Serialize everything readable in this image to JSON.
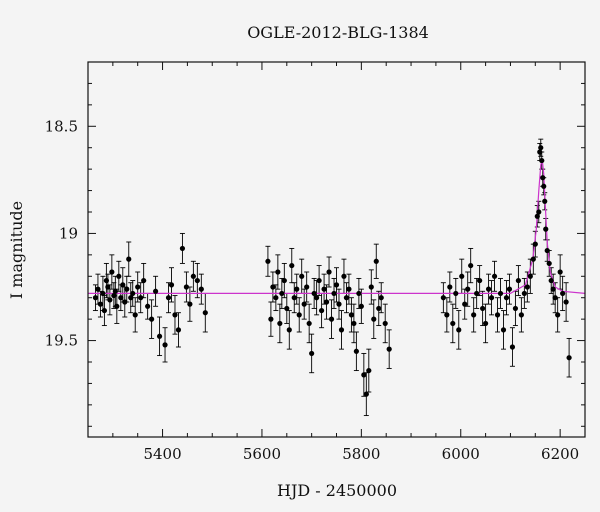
{
  "chart_data": {
    "type": "scatter",
    "title": "OGLE-2012-BLG-1384",
    "xlabel": "HJD - 2450000",
    "ylabel": "I magnitude",
    "xlim": [
      5250,
      6250
    ],
    "ylim": [
      19.95,
      18.2
    ],
    "y_inverted": true,
    "grid": false,
    "legend": "none",
    "xticks": [
      5400,
      5600,
      5800,
      6000,
      6200
    ],
    "yticks": [
      18.5,
      19,
      19.5
    ],
    "colors": {
      "points": "#000000",
      "model": "#cc33cc"
    },
    "series": [
      {
        "kind": "points_with_errorbars",
        "x": [
          5265,
          5270,
          5275,
          5280,
          5283,
          5287,
          5290,
          5294,
          5298,
          5302,
          5305,
          5308,
          5312,
          5316,
          5320,
          5324,
          5328,
          5332,
          5336,
          5340,
          5345,
          5350,
          5356,
          5362,
          5370,
          5378,
          5386,
          5394,
          5405,
          5412,
          5418,
          5425,
          5432,
          5440,
          5448,
          5455,
          5462,
          5470,
          5478,
          5486,
          5612,
          5618,
          5622,
          5628,
          5632,
          5636,
          5640,
          5645,
          5650,
          5655,
          5660,
          5665,
          5670,
          5675,
          5680,
          5685,
          5690,
          5695,
          5700,
          5705,
          5710,
          5715,
          5720,
          5725,
          5730,
          5735,
          5740,
          5745,
          5750,
          5755,
          5760,
          5765,
          5770,
          5775,
          5780,
          5785,
          5790,
          5795,
          5800,
          5805,
          5810,
          5815,
          5820,
          5825,
          5830,
          5835,
          5840,
          5848,
          5856,
          5965,
          5972,
          5978,
          5984,
          5990,
          5996,
          6002,
          6008,
          6014,
          6020,
          6026,
          6032,
          6038,
          6044,
          6050,
          6056,
          6062,
          6068,
          6074,
          6080,
          6086,
          6092,
          6098,
          6104,
          6110,
          6116,
          6122,
          6128,
          6134,
          6140,
          6146,
          6150,
          6154,
          6157,
          6159,
          6161,
          6163,
          6165,
          6167,
          6169,
          6171,
          6174,
          6178,
          6182,
          6186,
          6190,
          6195,
          6200,
          6205,
          6212,
          6218
        ],
        "y": [
          19.3,
          19.26,
          19.33,
          19.28,
          19.36,
          19.22,
          19.25,
          19.31,
          19.18,
          19.29,
          19.27,
          19.34,
          19.2,
          19.3,
          19.24,
          19.32,
          19.26,
          19.12,
          19.3,
          19.28,
          19.38,
          19.25,
          19.3,
          19.22,
          19.34,
          19.4,
          19.27,
          19.48,
          19.52,
          19.3,
          19.24,
          19.38,
          19.45,
          19.07,
          19.25,
          19.33,
          19.2,
          19.22,
          19.26,
          19.37,
          19.13,
          19.4,
          19.25,
          19.3,
          19.18,
          19.42,
          19.28,
          19.22,
          19.35,
          19.45,
          19.15,
          19.3,
          19.26,
          19.38,
          19.2,
          19.33,
          19.25,
          19.42,
          19.56,
          19.28,
          19.3,
          19.22,
          19.36,
          19.26,
          19.32,
          19.18,
          19.4,
          19.28,
          19.24,
          19.33,
          19.45,
          19.2,
          19.3,
          19.26,
          19.38,
          19.42,
          19.55,
          19.28,
          19.34,
          19.66,
          19.75,
          19.64,
          19.25,
          19.4,
          19.13,
          19.35,
          19.3,
          19.42,
          19.54,
          19.3,
          19.38,
          19.25,
          19.42,
          19.28,
          19.45,
          19.2,
          19.33,
          19.26,
          19.15,
          19.38,
          19.28,
          19.22,
          19.35,
          19.42,
          19.26,
          19.3,
          19.2,
          19.38,
          19.28,
          19.45,
          19.3,
          19.26,
          19.53,
          19.35,
          19.22,
          19.38,
          19.28,
          19.25,
          19.2,
          19.12,
          19.05,
          18.92,
          18.9,
          18.62,
          18.6,
          18.66,
          18.74,
          18.78,
          18.85,
          18.98,
          19.08,
          19.14,
          19.22,
          19.26,
          19.3,
          19.38,
          19.18,
          19.28,
          19.32,
          19.58
        ],
        "err": [
          0.06,
          0.07,
          0.06,
          0.08,
          0.07,
          0.08,
          0.06,
          0.07,
          0.08,
          0.06,
          0.07,
          0.08,
          0.07,
          0.06,
          0.08,
          0.07,
          0.06,
          0.08,
          0.07,
          0.06,
          0.08,
          0.07,
          0.07,
          0.08,
          0.06,
          0.09,
          0.07,
          0.09,
          0.08,
          0.07,
          0.08,
          0.09,
          0.08,
          0.07,
          0.07,
          0.08,
          0.07,
          0.08,
          0.07,
          0.09,
          0.07,
          0.08,
          0.07,
          0.06,
          0.08,
          0.09,
          0.07,
          0.08,
          0.07,
          0.09,
          0.08,
          0.07,
          0.07,
          0.08,
          0.08,
          0.07,
          0.07,
          0.09,
          0.09,
          0.07,
          0.08,
          0.07,
          0.08,
          0.07,
          0.08,
          0.07,
          0.09,
          0.07,
          0.08,
          0.07,
          0.09,
          0.08,
          0.07,
          0.07,
          0.08,
          0.09,
          0.09,
          0.07,
          0.08,
          0.1,
          0.1,
          0.1,
          0.08,
          0.09,
          0.08,
          0.08,
          0.07,
          0.09,
          0.09,
          0.07,
          0.08,
          0.07,
          0.09,
          0.07,
          0.09,
          0.08,
          0.07,
          0.08,
          0.08,
          0.08,
          0.07,
          0.07,
          0.08,
          0.09,
          0.07,
          0.08,
          0.07,
          0.08,
          0.07,
          0.09,
          0.08,
          0.07,
          0.09,
          0.08,
          0.07,
          0.08,
          0.07,
          0.07,
          0.08,
          0.07,
          0.06,
          0.05,
          0.05,
          0.04,
          0.04,
          0.04,
          0.04,
          0.04,
          0.04,
          0.05,
          0.05,
          0.06,
          0.06,
          0.07,
          0.07,
          0.08,
          0.08,
          0.08,
          0.09,
          0.09
        ]
      },
      {
        "kind": "model_line",
        "x": [
          5250,
          6100,
          6130,
          6145,
          6152,
          6157,
          6161,
          6164,
          6167,
          6170,
          6174,
          6180,
          6190,
          6205,
          6250
        ],
        "y": [
          19.28,
          19.28,
          19.24,
          19.12,
          18.98,
          18.8,
          18.68,
          18.66,
          18.72,
          18.86,
          19.04,
          19.18,
          19.25,
          19.27,
          19.28
        ]
      }
    ]
  }
}
